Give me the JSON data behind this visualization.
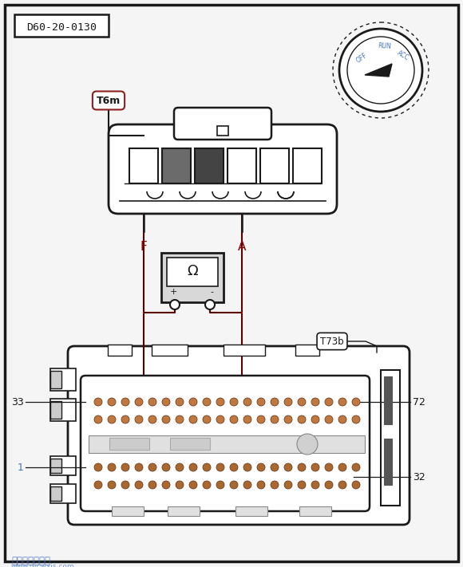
{
  "title": "D60-20-0130",
  "bg_color": "#f5f5f5",
  "connector_T6m_label": "T6m",
  "connector_T73b_label": "T73b",
  "label_F": "F",
  "label_A": "A",
  "label_33": "33",
  "label_1": "1",
  "label_72": "72",
  "label_32": "32",
  "watermark": "汽车维修技术网",
  "watermark2": "www.qicwxjs.com",
  "dark": "#1a1a1a",
  "red_brown": "#5a0000",
  "blue": "#4472c4"
}
